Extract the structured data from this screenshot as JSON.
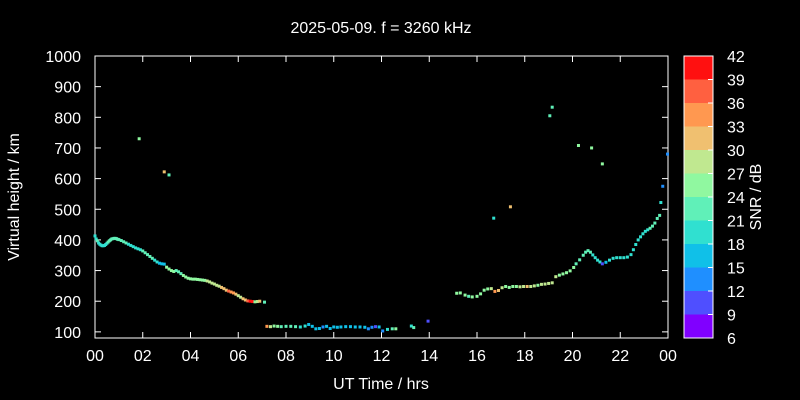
{
  "chart_data": {
    "type": "scatter",
    "title": "2025-05-09. f = 3260 kHz",
    "xlabel": "UT Time / hrs",
    "ylabel": "Virtual height / km",
    "xlim": [
      0,
      24
    ],
    "ylim": [
      80,
      1000
    ],
    "x_ticks": [
      "00",
      "02",
      "04",
      "06",
      "08",
      "10",
      "12",
      "14",
      "16",
      "18",
      "20",
      "22",
      "00"
    ],
    "y_ticks": [
      100,
      200,
      300,
      400,
      500,
      600,
      700,
      800,
      900,
      1000
    ],
    "colorbar": {
      "label": "SNR / dB",
      "ticks": [
        6,
        9,
        12,
        15,
        18,
        21,
        24,
        27,
        30,
        33,
        36,
        39,
        42
      ],
      "colors": [
        "#8000ff",
        "#4f4fff",
        "#1f8fff",
        "#10c0e8",
        "#30e0d0",
        "#60f0b8",
        "#90f8a0",
        "#c0e890",
        "#f0c070",
        "#ff9850",
        "#ff6040",
        "#ff1010"
      ]
    },
    "points": [
      {
        "x": 0.0,
        "y": 413,
        "snr": 20
      },
      {
        "x": 0.05,
        "y": 403,
        "snr": 20
      },
      {
        "x": 0.1,
        "y": 397,
        "snr": 21
      },
      {
        "x": 0.15,
        "y": 390,
        "snr": 20
      },
      {
        "x": 0.2,
        "y": 386,
        "snr": 20
      },
      {
        "x": 0.25,
        "y": 383,
        "snr": 20
      },
      {
        "x": 0.3,
        "y": 381,
        "snr": 20
      },
      {
        "x": 0.35,
        "y": 381,
        "snr": 20
      },
      {
        "x": 0.4,
        "y": 382,
        "snr": 20
      },
      {
        "x": 0.45,
        "y": 385,
        "snr": 20
      },
      {
        "x": 0.5,
        "y": 389,
        "snr": 20
      },
      {
        "x": 0.55,
        "y": 393,
        "snr": 21
      },
      {
        "x": 0.6,
        "y": 397,
        "snr": 21
      },
      {
        "x": 0.65,
        "y": 400,
        "snr": 21
      },
      {
        "x": 0.7,
        "y": 403,
        "snr": 21
      },
      {
        "x": 0.75,
        "y": 404,
        "snr": 21
      },
      {
        "x": 0.8,
        "y": 405,
        "snr": 22
      },
      {
        "x": 0.85,
        "y": 405,
        "snr": 22
      },
      {
        "x": 0.9,
        "y": 404,
        "snr": 22
      },
      {
        "x": 0.95,
        "y": 402,
        "snr": 22
      },
      {
        "x": 1.0,
        "y": 401,
        "snr": 22
      },
      {
        "x": 1.1,
        "y": 398,
        "snr": 22
      },
      {
        "x": 1.2,
        "y": 394,
        "snr": 21
      },
      {
        "x": 1.3,
        "y": 390,
        "snr": 21
      },
      {
        "x": 1.4,
        "y": 386,
        "snr": 20
      },
      {
        "x": 1.5,
        "y": 382,
        "snr": 20
      },
      {
        "x": 1.6,
        "y": 378,
        "snr": 19
      },
      {
        "x": 1.7,
        "y": 374,
        "snr": 19
      },
      {
        "x": 1.8,
        "y": 371,
        "snr": 19
      },
      {
        "x": 1.9,
        "y": 368,
        "snr": 20
      },
      {
        "x": 2.0,
        "y": 364,
        "snr": 21
      },
      {
        "x": 2.1,
        "y": 358,
        "snr": 21
      },
      {
        "x": 2.2,
        "y": 352,
        "snr": 22
      },
      {
        "x": 2.3,
        "y": 346,
        "snr": 22
      },
      {
        "x": 2.4,
        "y": 340,
        "snr": 22
      },
      {
        "x": 2.5,
        "y": 334,
        "snr": 20
      },
      {
        "x": 2.6,
        "y": 328,
        "snr": 18
      },
      {
        "x": 2.7,
        "y": 324,
        "snr": 17
      },
      {
        "x": 2.8,
        "y": 322,
        "snr": 16
      },
      {
        "x": 2.9,
        "y": 321,
        "snr": 16
      },
      {
        "x": 3.0,
        "y": 311,
        "snr": 24
      },
      {
        "x": 3.1,
        "y": 305,
        "snr": 24
      },
      {
        "x": 3.2,
        "y": 300,
        "snr": 25
      },
      {
        "x": 3.3,
        "y": 297,
        "snr": 26
      },
      {
        "x": 3.4,
        "y": 300,
        "snr": 22
      },
      {
        "x": 3.5,
        "y": 296,
        "snr": 22
      },
      {
        "x": 3.6,
        "y": 290,
        "snr": 23
      },
      {
        "x": 3.7,
        "y": 284,
        "snr": 24
      },
      {
        "x": 3.8,
        "y": 279,
        "snr": 24
      },
      {
        "x": 3.9,
        "y": 275,
        "snr": 24
      },
      {
        "x": 4.0,
        "y": 273,
        "snr": 24
      },
      {
        "x": 4.1,
        "y": 272,
        "snr": 24
      },
      {
        "x": 4.2,
        "y": 272,
        "snr": 25
      },
      {
        "x": 4.3,
        "y": 271,
        "snr": 25
      },
      {
        "x": 4.4,
        "y": 270,
        "snr": 25
      },
      {
        "x": 4.5,
        "y": 269,
        "snr": 26
      },
      {
        "x": 4.6,
        "y": 268,
        "snr": 26
      },
      {
        "x": 4.7,
        "y": 266,
        "snr": 27
      },
      {
        "x": 4.8,
        "y": 263,
        "snr": 28
      },
      {
        "x": 4.9,
        "y": 259,
        "snr": 28
      },
      {
        "x": 5.0,
        "y": 256,
        "snr": 28
      },
      {
        "x": 5.1,
        "y": 252,
        "snr": 28
      },
      {
        "x": 5.2,
        "y": 249,
        "snr": 29
      },
      {
        "x": 5.3,
        "y": 245,
        "snr": 30
      },
      {
        "x": 5.4,
        "y": 241,
        "snr": 31
      },
      {
        "x": 5.5,
        "y": 236,
        "snr": 31
      },
      {
        "x": 5.6,
        "y": 233,
        "snr": 36
      },
      {
        "x": 5.7,
        "y": 230,
        "snr": 33
      },
      {
        "x": 5.8,
        "y": 227,
        "snr": 33
      },
      {
        "x": 5.9,
        "y": 223,
        "snr": 30
      },
      {
        "x": 6.0,
        "y": 218,
        "snr": 28
      },
      {
        "x": 6.1,
        "y": 213,
        "snr": 28
      },
      {
        "x": 6.2,
        "y": 208,
        "snr": 31
      },
      {
        "x": 6.3,
        "y": 204,
        "snr": 31
      },
      {
        "x": 6.4,
        "y": 201,
        "snr": 38
      },
      {
        "x": 6.5,
        "y": 200,
        "snr": 42
      },
      {
        "x": 6.6,
        "y": 199,
        "snr": 40
      },
      {
        "x": 6.7,
        "y": 198,
        "snr": 25
      },
      {
        "x": 6.8,
        "y": 199,
        "snr": 28
      },
      {
        "x": 6.9,
        "y": 200,
        "snr": 30
      },
      {
        "x": 7.1,
        "y": 197,
        "snr": 22
      },
      {
        "x": 7.2,
        "y": 118,
        "snr": 33
      },
      {
        "x": 7.35,
        "y": 117,
        "snr": 27
      },
      {
        "x": 7.5,
        "y": 119,
        "snr": 25
      },
      {
        "x": 7.65,
        "y": 118,
        "snr": 24
      },
      {
        "x": 7.8,
        "y": 117,
        "snr": 23
      },
      {
        "x": 8.0,
        "y": 118,
        "snr": 22
      },
      {
        "x": 8.2,
        "y": 118,
        "snr": 22
      },
      {
        "x": 8.4,
        "y": 117,
        "snr": 21
      },
      {
        "x": 8.6,
        "y": 116,
        "snr": 20
      },
      {
        "x": 8.8,
        "y": 119,
        "snr": 19
      },
      {
        "x": 8.95,
        "y": 124,
        "snr": 16
      },
      {
        "x": 9.1,
        "y": 118,
        "snr": 16
      },
      {
        "x": 9.25,
        "y": 110,
        "snr": 15
      },
      {
        "x": 9.4,
        "y": 111,
        "snr": 15
      },
      {
        "x": 9.55,
        "y": 116,
        "snr": 14
      },
      {
        "x": 9.7,
        "y": 118,
        "snr": 15
      },
      {
        "x": 9.85,
        "y": 111,
        "snr": 15
      },
      {
        "x": 10.0,
        "y": 116,
        "snr": 15
      },
      {
        "x": 10.15,
        "y": 115,
        "snr": 16
      },
      {
        "x": 10.3,
        "y": 116,
        "snr": 16
      },
      {
        "x": 10.5,
        "y": 117,
        "snr": 17
      },
      {
        "x": 10.7,
        "y": 117,
        "snr": 17
      },
      {
        "x": 10.9,
        "y": 116,
        "snr": 16
      },
      {
        "x": 11.1,
        "y": 116,
        "snr": 15
      },
      {
        "x": 11.3,
        "y": 115,
        "snr": 16
      },
      {
        "x": 11.45,
        "y": 110,
        "snr": 13
      },
      {
        "x": 11.6,
        "y": 115,
        "snr": 14
      },
      {
        "x": 11.75,
        "y": 117,
        "snr": 10
      },
      {
        "x": 11.9,
        "y": 116,
        "snr": 15
      },
      {
        "x": 12.05,
        "y": 103,
        "snr": 13
      },
      {
        "x": 12.25,
        "y": 108,
        "snr": 20
      },
      {
        "x": 12.45,
        "y": 110,
        "snr": 22
      },
      {
        "x": 12.6,
        "y": 110,
        "snr": 24
      },
      {
        "x": 13.25,
        "y": 119,
        "snr": 20
      },
      {
        "x": 13.35,
        "y": 114,
        "snr": 21
      },
      {
        "x": 13.95,
        "y": 135,
        "snr": 11
      },
      {
        "x": 15.15,
        "y": 226,
        "snr": 25
      },
      {
        "x": 15.3,
        "y": 227,
        "snr": 25
      },
      {
        "x": 15.5,
        "y": 220,
        "snr": 26
      },
      {
        "x": 15.65,
        "y": 216,
        "snr": 23
      },
      {
        "x": 15.8,
        "y": 214,
        "snr": 24
      },
      {
        "x": 16.0,
        "y": 216,
        "snr": 24
      },
      {
        "x": 16.15,
        "y": 224,
        "snr": 24
      },
      {
        "x": 16.3,
        "y": 236,
        "snr": 24
      },
      {
        "x": 16.45,
        "y": 240,
        "snr": 25
      },
      {
        "x": 16.6,
        "y": 241,
        "snr": 28
      },
      {
        "x": 16.75,
        "y": 232,
        "snr": 33
      },
      {
        "x": 16.9,
        "y": 235,
        "snr": 32
      },
      {
        "x": 17.05,
        "y": 244,
        "snr": 27
      },
      {
        "x": 17.2,
        "y": 248,
        "snr": 26
      },
      {
        "x": 17.35,
        "y": 245,
        "snr": 26
      },
      {
        "x": 17.5,
        "y": 248,
        "snr": 26
      },
      {
        "x": 17.65,
        "y": 248,
        "snr": 26
      },
      {
        "x": 17.8,
        "y": 247,
        "snr": 27
      },
      {
        "x": 17.95,
        "y": 248,
        "snr": 29
      },
      {
        "x": 18.1,
        "y": 248,
        "snr": 30
      },
      {
        "x": 18.25,
        "y": 248,
        "snr": 29
      },
      {
        "x": 18.4,
        "y": 250,
        "snr": 27
      },
      {
        "x": 18.55,
        "y": 252,
        "snr": 26
      },
      {
        "x": 18.7,
        "y": 255,
        "snr": 27
      },
      {
        "x": 18.85,
        "y": 256,
        "snr": 28
      },
      {
        "x": 19.0,
        "y": 258,
        "snr": 28
      },
      {
        "x": 19.15,
        "y": 260,
        "snr": 27
      },
      {
        "x": 19.3,
        "y": 280,
        "snr": 27
      },
      {
        "x": 19.45,
        "y": 285,
        "snr": 26
      },
      {
        "x": 19.6,
        "y": 289,
        "snr": 26
      },
      {
        "x": 19.75,
        "y": 293,
        "snr": 25
      },
      {
        "x": 19.9,
        "y": 299,
        "snr": 24
      },
      {
        "x": 20.05,
        "y": 310,
        "snr": 24
      },
      {
        "x": 20.15,
        "y": 322,
        "snr": 23
      },
      {
        "x": 20.3,
        "y": 335,
        "snr": 22
      },
      {
        "x": 20.45,
        "y": 350,
        "snr": 21
      },
      {
        "x": 20.55,
        "y": 360,
        "snr": 21
      },
      {
        "x": 20.65,
        "y": 365,
        "snr": 22
      },
      {
        "x": 20.75,
        "y": 360,
        "snr": 21
      },
      {
        "x": 20.85,
        "y": 351,
        "snr": 20
      },
      {
        "x": 20.95,
        "y": 342,
        "snr": 20
      },
      {
        "x": 21.05,
        "y": 334,
        "snr": 19
      },
      {
        "x": 21.15,
        "y": 328,
        "snr": 18
      },
      {
        "x": 21.25,
        "y": 322,
        "snr": 11
      },
      {
        "x": 21.4,
        "y": 327,
        "snr": 17
      },
      {
        "x": 21.55,
        "y": 334,
        "snr": 18
      },
      {
        "x": 21.7,
        "y": 340,
        "snr": 18
      },
      {
        "x": 21.85,
        "y": 342,
        "snr": 19
      },
      {
        "x": 22.0,
        "y": 342,
        "snr": 19
      },
      {
        "x": 22.15,
        "y": 342,
        "snr": 20
      },
      {
        "x": 22.3,
        "y": 344,
        "snr": 20
      },
      {
        "x": 22.45,
        "y": 352,
        "snr": 20
      },
      {
        "x": 22.55,
        "y": 368,
        "snr": 19
      },
      {
        "x": 22.65,
        "y": 385,
        "snr": 19
      },
      {
        "x": 22.75,
        "y": 400,
        "snr": 19
      },
      {
        "x": 22.85,
        "y": 410,
        "snr": 18
      },
      {
        "x": 22.95,
        "y": 420,
        "snr": 18
      },
      {
        "x": 23.05,
        "y": 428,
        "snr": 19
      },
      {
        "x": 23.15,
        "y": 433,
        "snr": 20
      },
      {
        "x": 23.25,
        "y": 438,
        "snr": 21
      },
      {
        "x": 23.35,
        "y": 445,
        "snr": 22
      },
      {
        "x": 23.45,
        "y": 455,
        "snr": 22
      },
      {
        "x": 23.55,
        "y": 470,
        "snr": 22
      },
      {
        "x": 23.65,
        "y": 480,
        "snr": 22
      },
      {
        "x": 23.7,
        "y": 522,
        "snr": 18
      },
      {
        "x": 23.78,
        "y": 575,
        "snr": 14
      },
      {
        "x": 23.98,
        "y": 680,
        "snr": 12
      },
      {
        "x": 1.85,
        "y": 730,
        "snr": 25
      },
      {
        "x": 2.9,
        "y": 622,
        "snr": 32
      },
      {
        "x": 3.1,
        "y": 612,
        "snr": 22
      },
      {
        "x": 16.7,
        "y": 471,
        "snr": 18
      },
      {
        "x": 17.4,
        "y": 508,
        "snr": 31
      },
      {
        "x": 19.05,
        "y": 805,
        "snr": 21
      },
      {
        "x": 19.15,
        "y": 833,
        "snr": 22
      },
      {
        "x": 20.25,
        "y": 708,
        "snr": 25
      },
      {
        "x": 20.8,
        "y": 700,
        "snr": 24
      },
      {
        "x": 21.25,
        "y": 648,
        "snr": 24
      }
    ]
  }
}
